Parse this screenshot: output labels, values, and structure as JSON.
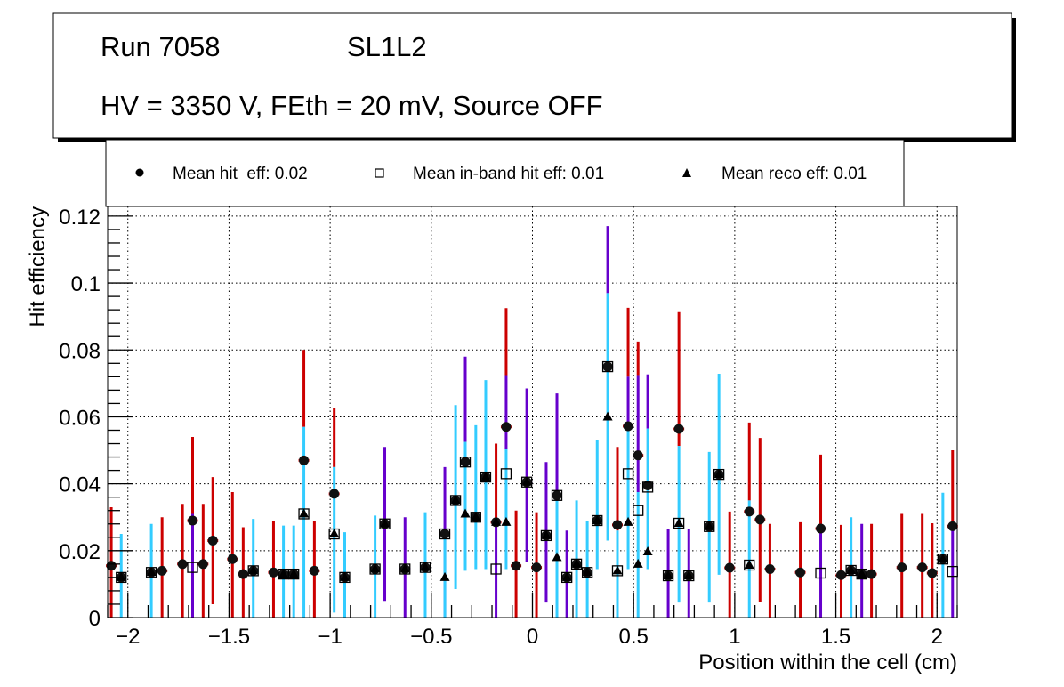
{
  "title_box": {
    "run": "Run 7058",
    "layer": "SL1L2",
    "conditions": "HV = 3350 V, FEth = 20 mV, Source OFF"
  },
  "legend": {
    "placement": "top",
    "entries": [
      {
        "label": "Mean hit  eff: 0.02",
        "marker": "filled-circle"
      },
      {
        "label": "Mean in-band hit eff: 0.01",
        "marker": "open-square"
      },
      {
        "label": "Mean reco eff: 0.01",
        "marker": "filled-triangle"
      }
    ]
  },
  "chart_data": {
    "type": "scatter",
    "xlabel": "Position within the cell (cm)",
    "ylabel": "Hit efficiency",
    "xlim": [
      -2.1,
      2.1
    ],
    "ylim": [
      0,
      0.1229
    ],
    "grid": true,
    "x_ticks": [
      -2,
      -1.5,
      -1,
      -0.5,
      0,
      0.5,
      1,
      1.5,
      2
    ],
    "x_tick_labels": [
      "−2",
      "−1.5",
      "−1",
      "−0.5",
      "0",
      "0.5",
      "1",
      "1.5",
      "2"
    ],
    "y_ticks": [
      0,
      0.02,
      0.04,
      0.06,
      0.08,
      0.1,
      0.12
    ],
    "y_tick_labels": [
      "0",
      "0.02",
      "0.04",
      "0.06",
      "0.08",
      "0.1",
      "0.12"
    ],
    "series_colors": {
      "h": "#cc0000",
      "i": "#6600cc",
      "r": "#33ccff"
    },
    "series_names": {
      "h": "Mean hit eff",
      "i": "Mean in-band hit eff",
      "r": "Mean reco eff"
    },
    "points": [
      {
        "x": -2.082,
        "h": 0.0155,
        "i": null,
        "r": null,
        "err": [
          [
            "h",
            0,
            0.033
          ]
        ]
      },
      {
        "x": -2.033,
        "h": 0.012,
        "i": 0.012,
        "r": 0.012,
        "err": [
          [
            "r",
            0,
            0.025
          ]
        ]
      },
      {
        "x": -1.884,
        "h": 0.0135,
        "i": 0.0135,
        "r": 0.0135,
        "err": [
          [
            "r",
            0,
            0.028
          ]
        ]
      },
      {
        "x": -1.831,
        "h": 0.014,
        "i": null,
        "r": null,
        "err": [
          [
            "h",
            0,
            0.03
          ]
        ]
      },
      {
        "x": -1.73,
        "h": 0.016,
        "i": null,
        "r": null,
        "err": [
          [
            "h",
            0,
            0.034
          ]
        ]
      },
      {
        "x": -1.68,
        "h": 0.029,
        "i": 0.015,
        "r": null,
        "err": [
          [
            "h",
            0.029,
            0.054
          ],
          [
            "i",
            0,
            0.031
          ]
        ]
      },
      {
        "x": -1.628,
        "h": 0.016,
        "i": null,
        "r": null,
        "err": [
          [
            "h",
            0,
            0.034
          ]
        ]
      },
      {
        "x": -1.58,
        "h": 0.023,
        "i": null,
        "r": null,
        "err": [
          [
            "h",
            0.004,
            0.042
          ]
        ]
      },
      {
        "x": -1.483,
        "h": 0.0175,
        "i": null,
        "r": null,
        "err": [
          [
            "h",
            0,
            0.0375
          ]
        ]
      },
      {
        "x": -1.43,
        "h": 0.013,
        "i": null,
        "r": null,
        "err": [
          [
            "h",
            0,
            0.027
          ]
        ]
      },
      {
        "x": -1.38,
        "h": 0.014,
        "i": 0.014,
        "r": 0.014,
        "err": [
          [
            "r",
            0,
            0.0295
          ]
        ]
      },
      {
        "x": -1.28,
        "h": 0.0135,
        "i": null,
        "r": null,
        "err": [
          [
            "h",
            0,
            0.029
          ]
        ]
      },
      {
        "x": -1.231,
        "h": 0.013,
        "i": 0.013,
        "r": 0.013,
        "err": [
          [
            "r",
            0,
            0.0275
          ]
        ]
      },
      {
        "x": -1.18,
        "h": 0.013,
        "i": 0.013,
        "r": 0.013,
        "err": [
          [
            "r",
            0,
            0.0275
          ]
        ]
      },
      {
        "x": -1.13,
        "h": 0.047,
        "i": 0.031,
        "r": 0.031,
        "err": [
          [
            "h",
            0.057,
            0.08
          ],
          [
            "r",
            0,
            0.057
          ]
        ]
      },
      {
        "x": -1.078,
        "h": 0.014,
        "i": null,
        "r": null,
        "err": [
          [
            "h",
            0,
            0.029
          ]
        ]
      },
      {
        "x": -0.98,
        "h": 0.037,
        "i": 0.025,
        "r": 0.025,
        "err": [
          [
            "h",
            0.045,
            0.0625
          ],
          [
            "r",
            0.0015,
            0.045
          ]
        ]
      },
      {
        "x": -0.928,
        "h": 0.012,
        "i": 0.012,
        "r": 0.012,
        "err": [
          [
            "r",
            0,
            0.0255
          ]
        ]
      },
      {
        "x": -0.778,
        "h": 0.0145,
        "i": 0.0145,
        "r": 0.0145,
        "err": [
          [
            "r",
            0,
            0.0305
          ]
        ]
      },
      {
        "x": -0.73,
        "h": 0.028,
        "i": 0.028,
        "r": 0.028,
        "err": [
          [
            "i",
            0.005,
            0.051
          ]
        ]
      },
      {
        "x": -0.63,
        "h": 0.0145,
        "i": 0.0145,
        "r": 0.0145,
        "err": [
          [
            "i",
            0,
            0.03
          ]
        ]
      },
      {
        "x": -0.53,
        "h": 0.015,
        "i": 0.015,
        "r": 0.015,
        "err": [
          [
            "r",
            0,
            0.0315
          ]
        ]
      },
      {
        "x": -0.433,
        "h": 0.025,
        "i": 0.025,
        "r": 0.012,
        "err": [
          [
            "i",
            0,
            0.045
          ],
          [
            "r",
            0,
            0.025
          ]
        ]
      },
      {
        "x": -0.38,
        "h": 0.035,
        "i": 0.035,
        "r": 0.035,
        "err": [
          [
            "r",
            0.0085,
            0.0635
          ]
        ]
      },
      {
        "x": -0.332,
        "h": 0.0465,
        "i": 0.0465,
        "r": 0.031,
        "err": [
          [
            "i",
            0.0525,
            0.078
          ],
          [
            "r",
            0.014,
            0.0525
          ]
        ]
      },
      {
        "x": -0.28,
        "h": 0.03,
        "i": 0.03,
        "r": 0.03,
        "err": [
          [
            "r",
            0.0145,
            0.0575
          ]
        ]
      },
      {
        "x": -0.231,
        "h": 0.042,
        "i": 0.042,
        "r": 0.042,
        "err": [
          [
            "r",
            0.0145,
            0.071
          ]
        ]
      },
      {
        "x": -0.18,
        "h": 0.0285,
        "i": 0.0145,
        "r": 0.0285,
        "err": [
          [
            "h",
            0.0285,
            0.052
          ],
          [
            "i",
            0,
            0.0285
          ]
        ]
      },
      {
        "x": -0.13,
        "h": 0.057,
        "i": 0.043,
        "r": 0.0285,
        "err": [
          [
            "h",
            0.0725,
            0.0925
          ],
          [
            "i",
            0.0505,
            0.0725
          ],
          [
            "r",
            0.0145,
            0.0505
          ]
        ]
      },
      {
        "x": -0.081,
        "h": 0.0155,
        "i": null,
        "r": null,
        "err": [
          [
            "h",
            0,
            0.032
          ]
        ]
      },
      {
        "x": -0.028,
        "h": 0.0405,
        "i": 0.0405,
        "r": 0.0405,
        "err": [
          [
            "i",
            0.0165,
            0.0685
          ]
        ]
      },
      {
        "x": 0.02,
        "h": 0.015,
        "i": null,
        "r": null,
        "err": [
          [
            "h",
            0,
            0.0315
          ]
        ]
      },
      {
        "x": 0.068,
        "h": 0.0245,
        "i": 0.0245,
        "r": 0.0245,
        "err": [
          [
            "i",
            0.0045,
            0.0465
          ]
        ]
      },
      {
        "x": 0.121,
        "h": 0.0365,
        "i": 0.0365,
        "r": 0.018,
        "err": [
          [
            "i",
            0.0365,
            0.067
          ],
          [
            "r",
            0,
            0.0365
          ]
        ]
      },
      {
        "x": 0.17,
        "h": 0.012,
        "i": 0.012,
        "r": 0.012,
        "err": [
          [
            "i",
            0,
            0.026
          ]
        ]
      },
      {
        "x": 0.218,
        "h": 0.016,
        "i": 0.016,
        "r": 0.016,
        "err": [
          [
            "r",
            0,
            0.035
          ]
        ]
      },
      {
        "x": 0.271,
        "h": 0.0135,
        "i": 0.0135,
        "r": 0.0135,
        "err": [
          [
            "r",
            0,
            0.029
          ]
        ]
      },
      {
        "x": 0.32,
        "h": 0.029,
        "i": 0.029,
        "r": 0.029,
        "err": [
          [
            "r",
            0.0145,
            0.053
          ]
        ]
      },
      {
        "x": 0.372,
        "h": 0.075,
        "i": 0.075,
        "r": 0.06,
        "err": [
          [
            "i",
            0.097,
            0.117
          ],
          [
            "r",
            0.023,
            0.097
          ]
        ]
      },
      {
        "x": 0.42,
        "h": 0.0277,
        "i": 0.014,
        "r": 0.014,
        "err": [
          [
            "h",
            0.026,
            0.051
          ],
          [
            "r",
            0,
            0.026
          ]
        ]
      },
      {
        "x": 0.473,
        "h": 0.0572,
        "i": 0.043,
        "r": 0.0285,
        "err": [
          [
            "h",
            0.072,
            0.0926
          ],
          [
            "i",
            0.057,
            0.072
          ],
          [
            "r",
            0.0145,
            0.057
          ]
        ]
      },
      {
        "x": 0.522,
        "h": 0.0485,
        "i": 0.032,
        "r": 0.016,
        "err": [
          [
            "h",
            0.0725,
            0.0825
          ],
          [
            "i",
            0.0375,
            0.0725
          ],
          [
            "r",
            0,
            0.0375
          ]
        ]
      },
      {
        "x": 0.57,
        "h": 0.0395,
        "i": 0.039,
        "r": 0.0197,
        "err": [
          [
            "i",
            0.0565,
            0.0727
          ],
          [
            "r",
            0.0145,
            0.0565
          ]
        ]
      },
      {
        "x": 0.671,
        "h": 0.0125,
        "i": 0.0125,
        "r": 0.0125,
        "err": [
          [
            "i",
            0,
            0.0265
          ]
        ]
      },
      {
        "x": 0.724,
        "h": 0.0564,
        "i": 0.0282,
        "r": 0.0282,
        "err": [
          [
            "h",
            0.0513,
            0.0913
          ],
          [
            "r",
            0.0045,
            0.0513
          ]
        ]
      },
      {
        "x": 0.773,
        "h": 0.0125,
        "i": 0.0125,
        "r": 0.0125,
        "err": [
          [
            "i",
            0,
            0.0265
          ]
        ]
      },
      {
        "x": 0.874,
        "h": 0.0272,
        "i": 0.0272,
        "r": 0.0272,
        "err": [
          [
            "r",
            0.0045,
            0.0495
          ]
        ]
      },
      {
        "x": 0.922,
        "h": 0.0428,
        "i": 0.0428,
        "r": 0.0428,
        "err": [
          [
            "r",
            0.0128,
            0.0729
          ]
        ]
      },
      {
        "x": 0.975,
        "h": 0.0149,
        "i": null,
        "r": null,
        "err": [
          [
            "h",
            0,
            0.0317
          ]
        ]
      },
      {
        "x": 1.072,
        "h": 0.0317,
        "i": 0.0157,
        "r": 0.0157,
        "err": [
          [
            "h",
            0.035,
            0.0583
          ],
          [
            "r",
            0,
            0.035
          ]
        ]
      },
      {
        "x": 1.125,
        "h": 0.0293,
        "i": null,
        "r": null,
        "err": [
          [
            "h",
            0.0048,
            0.0537
          ]
        ]
      },
      {
        "x": 1.174,
        "h": 0.0145,
        "i": null,
        "r": null,
        "err": [
          [
            "h",
            0,
            0.028
          ]
        ]
      },
      {
        "x": 1.324,
        "h": 0.0135,
        "i": null,
        "r": null,
        "err": [
          [
            "h",
            0,
            0.0285
          ]
        ]
      },
      {
        "x": 1.425,
        "h": 0.0266,
        "i": 0.0133,
        "r": null,
        "err": [
          [
            "h",
            0.027,
            0.0487
          ],
          [
            "i",
            0,
            0.027
          ]
        ]
      },
      {
        "x": 1.526,
        "h": 0.0127,
        "i": null,
        "r": null,
        "err": [
          [
            "h",
            0,
            0.0277
          ]
        ]
      },
      {
        "x": 1.575,
        "h": 0.0141,
        "i": 0.0141,
        "r": 0.0141,
        "err": [
          [
            "r",
            0,
            0.03
          ]
        ]
      },
      {
        "x": 1.628,
        "h": 0.013,
        "i": 0.013,
        "r": 0.013,
        "err": [
          [
            "i",
            0,
            0.028
          ]
        ]
      },
      {
        "x": 1.676,
        "h": 0.013,
        "i": null,
        "r": null,
        "err": [
          [
            "h",
            0,
            0.028
          ]
        ]
      },
      {
        "x": 1.826,
        "h": 0.015,
        "i": null,
        "r": null,
        "err": [
          [
            "h",
            0,
            0.031
          ]
        ]
      },
      {
        "x": 1.927,
        "h": 0.015,
        "i": null,
        "r": null,
        "err": [
          [
            "h",
            0,
            0.031
          ]
        ]
      },
      {
        "x": 1.976,
        "h": 0.0133,
        "i": null,
        "r": null,
        "err": [
          [
            "h",
            0,
            0.0282
          ]
        ]
      },
      {
        "x": 2.029,
        "h": 0.0175,
        "i": 0.0175,
        "r": 0.0175,
        "err": [
          [
            "r",
            0,
            0.0373
          ]
        ]
      },
      {
        "x": 2.077,
        "h": 0.0273,
        "i": 0.0138,
        "r": null,
        "err": [
          [
            "h",
            0.0272,
            0.05
          ],
          [
            "i",
            0,
            0.0272
          ]
        ]
      }
    ]
  }
}
